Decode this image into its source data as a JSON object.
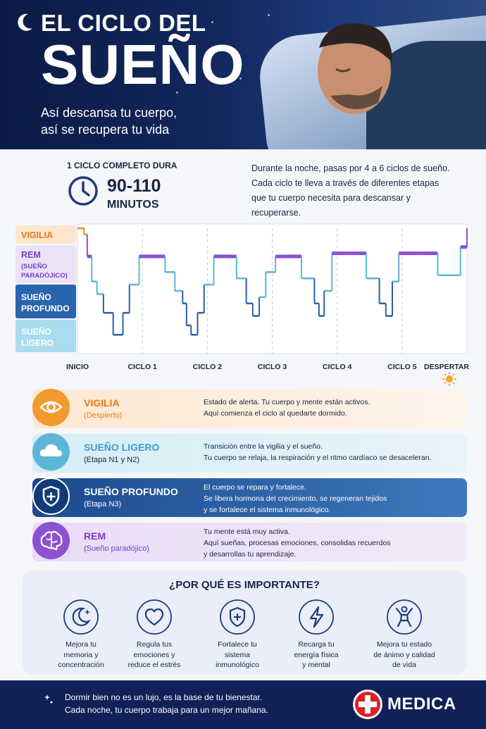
{
  "header": {
    "title_line1": "EL CICLO DEL",
    "title_line2": "SUEÑO",
    "subtitle_line1": "Así descansa tu cuerpo,",
    "subtitle_line2": "así se recupera tu vida"
  },
  "intro": {
    "cycle_label": "1 CICLO COMPLETO DURA",
    "cycle_range": "90-110",
    "cycle_unit": "MINUTOS",
    "description": "Durante la noche, pasas por 4 a 6 ciclos de sueño. Cada ciclo te lleva a través de diferentes etapas que tu cuerpo necesita para descansar y recuperarse."
  },
  "chart_data": {
    "type": "line",
    "y_categories": [
      {
        "label": "VIGILIA",
        "sublabel": "",
        "color": "#f08a1c"
      },
      {
        "label": "REM",
        "sublabel": "(SUEÑO PARADÓJICO)",
        "color": "#8a4fd1"
      },
      {
        "label": "SUEÑO PROFUNDO",
        "sublabel": "",
        "color": "#2c5fa6"
      },
      {
        "label": "SUEÑO LIGERO",
        "sublabel": "",
        "color": "#5bb5d6"
      }
    ],
    "x_categories": [
      "INICIO",
      "CICLO 1",
      "CICLO 2",
      "CICLO 3",
      "CICLO 4",
      "CICLO 5",
      "DESPERTAR"
    ],
    "x_range": [
      0,
      6
    ],
    "y_range": [
      0,
      4
    ],
    "grid": "vertical dashed",
    "series": [
      {
        "x": [
          0,
          0.1,
          0.15,
          0.22,
          0.3,
          0.4,
          0.55,
          0.7,
          0.8,
          0.95,
          1.15,
          1.35,
          1.5,
          1.62,
          1.68,
          1.75,
          1.85,
          1.95,
          2.1,
          2.3,
          2.45,
          2.6,
          2.7,
          2.8,
          2.9,
          3.05,
          3.2,
          3.45,
          3.65,
          3.72,
          3.8,
          3.92,
          4.2,
          4.45,
          4.65,
          4.75,
          4.85,
          4.95,
          5.25,
          5.55,
          5.78,
          5.9,
          6.0
        ],
        "y": [
          4.0,
          3.8,
          3.1,
          2.3,
          1.9,
          1.3,
          0.6,
          1.3,
          2.2,
          3.1,
          3.1,
          2.6,
          2.0,
          1.6,
          0.9,
          0.6,
          1.3,
          2.2,
          3.1,
          3.1,
          2.4,
          1.6,
          1.2,
          1.8,
          2.6,
          3.1,
          3.1,
          2.4,
          1.6,
          1.2,
          2.0,
          3.2,
          3.2,
          2.4,
          1.6,
          1.2,
          2.3,
          3.2,
          3.2,
          2.5,
          2.5,
          3.4,
          4.0
        ]
      }
    ]
  },
  "stages": [
    {
      "title": "VIGILIA",
      "subtitle": "(Despierto)",
      "desc1": "Estado de alerta. Tu cuerpo y mente están activos.",
      "desc2": "Aquí comienza el ciclo al quedarte dormido.",
      "desc3": ""
    },
    {
      "title": "SUEÑO LIGERO",
      "subtitle": "(Etapa N1 y N2)",
      "desc1": "Transición entre la vigilia y el sueño.",
      "desc2": "Tu cuerpo se relaja, la respiración y el ritmo cardíaco se desaceleran.",
      "desc3": ""
    },
    {
      "title": "SUEÑO PROFUNDO",
      "subtitle": "(Etapa N3)",
      "desc1": "El cuerpo se repara y fortalece.",
      "desc2": "Se libera hormona del crecimiento, se regeneran tejidos",
      "desc3": "y se fortalece el sistema inmunológico."
    },
    {
      "title": "REM",
      "subtitle": "(Sueño paradójico)",
      "desc1": "Tu mente está muy activa.",
      "desc2": "Aquí sueñas, procesas emociones, consolidas recuerdos",
      "desc3": "y desarrollas tu aprendizaje."
    }
  ],
  "importance": {
    "title": "¿POR QUÉ ES IMPORTANTE?",
    "benefits": [
      {
        "icon": "moon-stars-icon",
        "l1": "Mejora tu",
        "l2": "memoria y",
        "l3": "concentración"
      },
      {
        "icon": "heart-icon",
        "l1": "Regula tus",
        "l2": "emociones y",
        "l3": "reduce el estrés"
      },
      {
        "icon": "shield-plus-icon",
        "l1": "Fortalece tu",
        "l2": "sistema",
        "l3": "inmunológico"
      },
      {
        "icon": "lightning-icon",
        "l1": "Recarga tu",
        "l2": "energía física",
        "l3": "y mental"
      },
      {
        "icon": "person-celebrating-icon",
        "l1": "Mejora tu estado",
        "l2": "de ánimo y calidad",
        "l3": "de vida"
      }
    ]
  },
  "footer": {
    "line1": "Dormir bien no es un lujo, es la base de tu bienestar.",
    "line2": "Cada noche, tu cuerpo trabaja para un mejor mañana.",
    "brand": "MEDICA"
  },
  "colors": {
    "navy": "#0f2156",
    "vigilia": "#f08a1c",
    "rem": "#8a4fd1",
    "profundo": "#2c5fa6",
    "ligero": "#5bb5d6"
  }
}
